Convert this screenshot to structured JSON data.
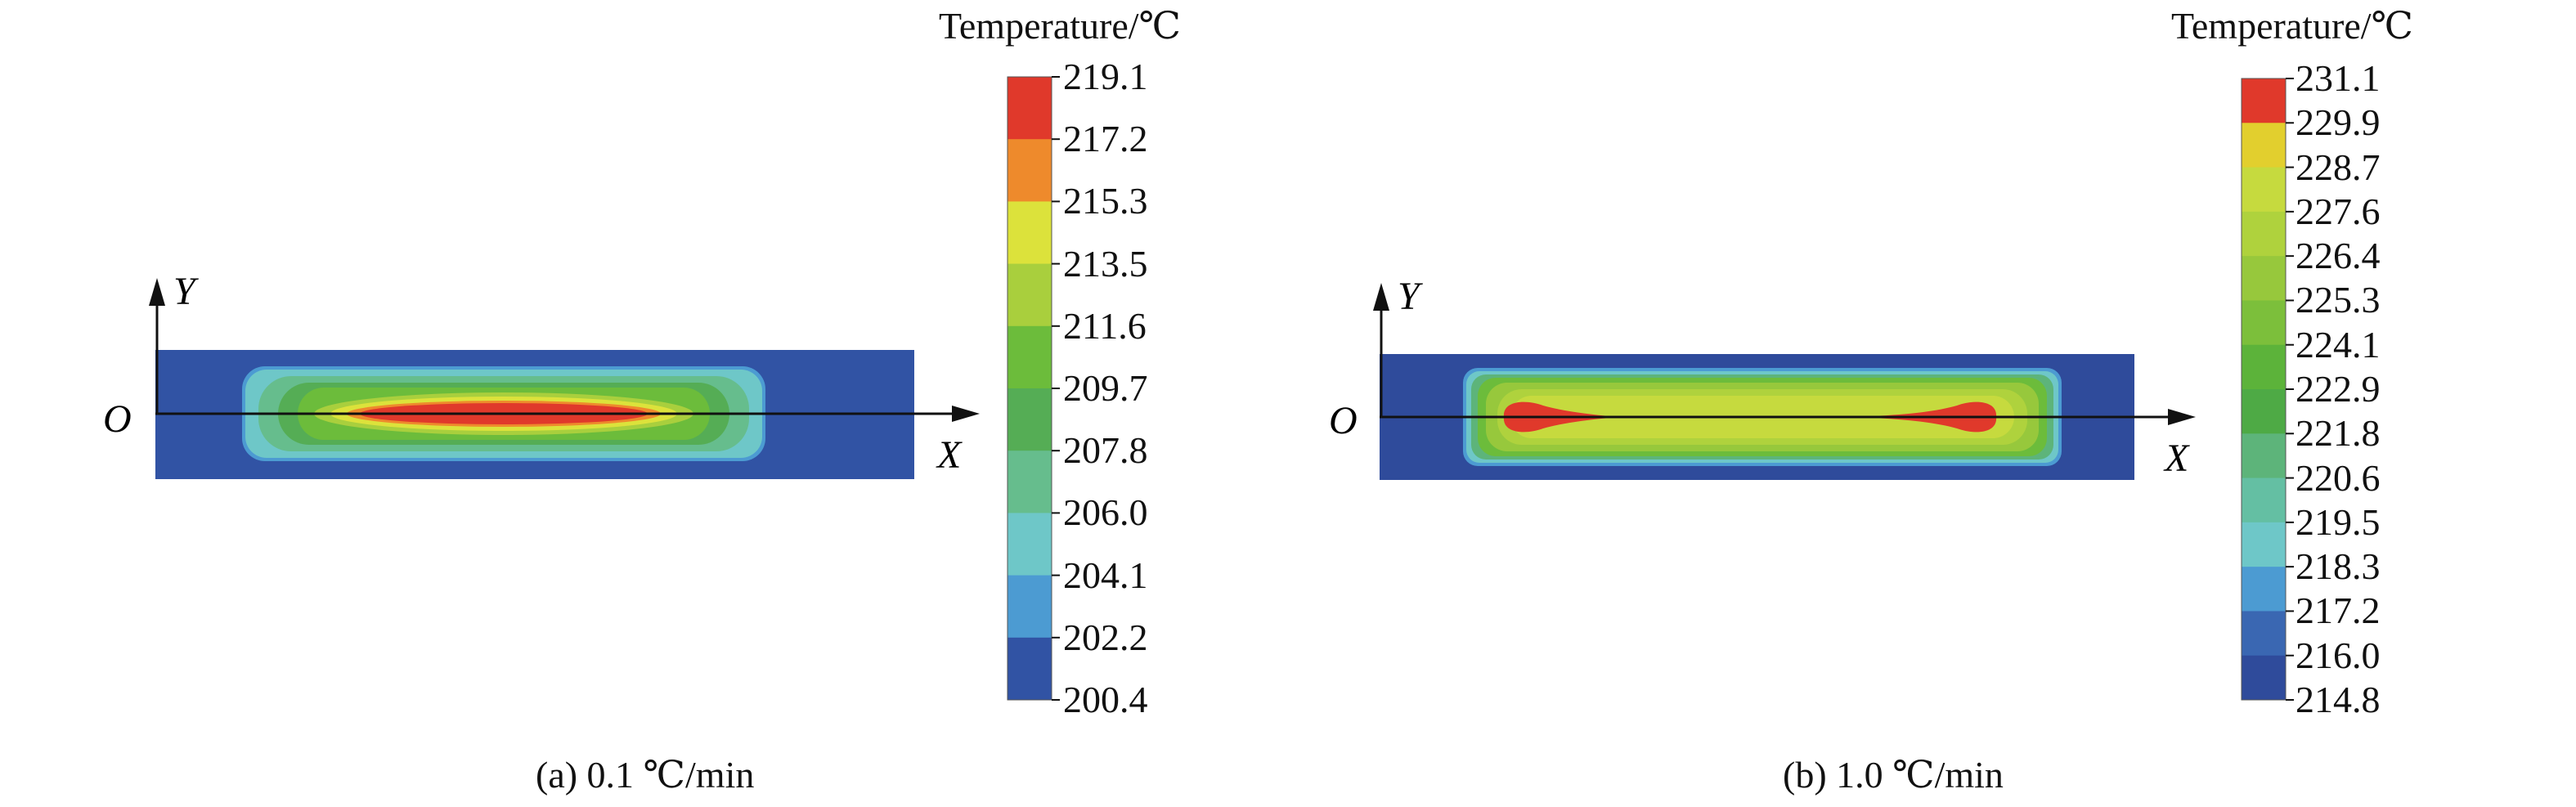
{
  "panels": [
    {
      "caption": "(a) 0.1 ℃/min",
      "axes": {
        "origin": "O",
        "x": "X",
        "y": "Y"
      },
      "legend": {
        "title": "Temperature/℃",
        "labels": [
          "219.1",
          "217.2",
          "215.3",
          "213.5",
          "211.6",
          "209.7",
          "207.8",
          "206.0",
          "204.1",
          "202.2",
          "200.4"
        ],
        "colors": [
          "#e0392b",
          "#ee8a2c",
          "#dce23b",
          "#a9cf3d",
          "#6cbc3b",
          "#55ad55",
          "#66bd8d",
          "#6ec7c8",
          "#4c9bd2",
          "#3153a4"
        ]
      },
      "field_colors": {
        "background": "#3153a4",
        "rings": [
          "#4c9bd2",
          "#6ec7c8",
          "#66bd8d",
          "#55ad55",
          "#6cbc3b",
          "#a9cf3d",
          "#dce23b",
          "#ee8a2c",
          "#e0392b"
        ]
      }
    },
    {
      "caption": "(b) 1.0 ℃/min",
      "axes": {
        "origin": "O",
        "x": "X",
        "y": "Y"
      },
      "legend": {
        "title": "Temperature/℃",
        "labels": [
          "231.1",
          "229.9",
          "228.7",
          "227.6",
          "226.4",
          "225.3",
          "224.1",
          "222.9",
          "221.8",
          "220.6",
          "219.5",
          "218.3",
          "217.2",
          "216.0",
          "214.8"
        ],
        "colors": [
          "#e0392b",
          "#e2cf2e",
          "#c6da3e",
          "#afd23d",
          "#97c83c",
          "#7cbf3b",
          "#5cb33a",
          "#4eaa45",
          "#5db47a",
          "#64bfa3",
          "#6ec7c8",
          "#4c9bd2",
          "#3a67b2",
          "#2f4b9b"
        ]
      },
      "field_colors": {
        "background": "#2f4b9b",
        "rings": [
          "#4c9bd2",
          "#6ec7c8",
          "#5db47a",
          "#6cbc3b",
          "#97c83c",
          "#afd23d",
          "#c6da3e"
        ],
        "hot_spots": "#e0392b"
      }
    }
  ]
}
